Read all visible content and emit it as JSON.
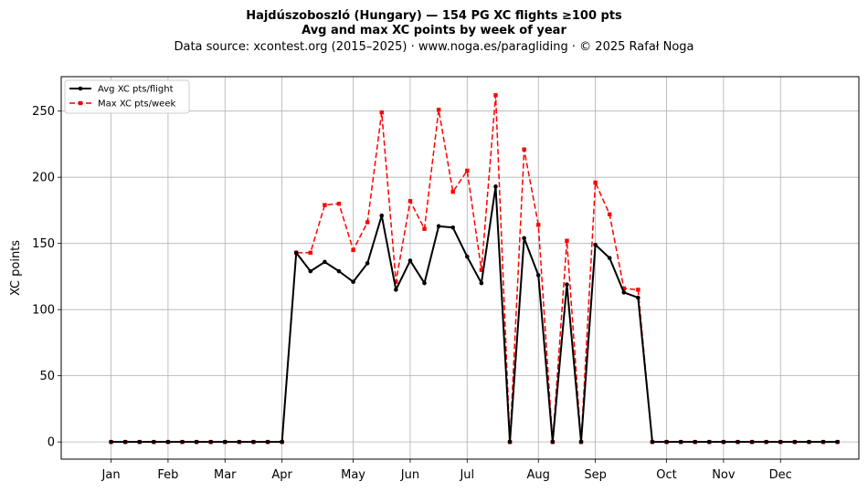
{
  "chart_data": {
    "type": "line",
    "title": "Hajdúszoboszló (Hungary)  —  154 PG XC flights ≥100 pts",
    "subtitle": "Avg and max XC points by week of year",
    "source_line": "Data source: xcontest.org (2015–2025)  ·  www.noga.es/paragliding  ·  © 2025 Rafał Noga",
    "xlabel": "",
    "ylabel": "XC points",
    "xlim": [
      -2.5,
      53.5
    ],
    "ylim": [
      -13,
      276
    ],
    "yticks": [
      0,
      50,
      100,
      150,
      200,
      250
    ],
    "month_ticks": [
      {
        "label": "Jan",
        "week": 1
      },
      {
        "label": "Feb",
        "week": 5
      },
      {
        "label": "Mar",
        "week": 9
      },
      {
        "label": "Apr",
        "week": 13
      },
      {
        "label": "May",
        "week": 18
      },
      {
        "label": "Jun",
        "week": 22
      },
      {
        "label": "Jul",
        "week": 26
      },
      {
        "label": "Aug",
        "week": 31
      },
      {
        "label": "Sep",
        "week": 35
      },
      {
        "label": "Oct",
        "week": 40
      },
      {
        "label": "Nov",
        "week": 44
      },
      {
        "label": "Dec",
        "week": 48
      }
    ],
    "grid": true,
    "legend_position": "top-left",
    "x": [
      1,
      2,
      3,
      4,
      5,
      6,
      7,
      8,
      9,
      10,
      11,
      12,
      13,
      14,
      15,
      16,
      17,
      18,
      19,
      20,
      21,
      22,
      23,
      24,
      25,
      26,
      27,
      28,
      29,
      30,
      31,
      32,
      33,
      34,
      35,
      36,
      37,
      38,
      39,
      40,
      41,
      42,
      43,
      44,
      45,
      46,
      47,
      48,
      49,
      50,
      51,
      52
    ],
    "series": [
      {
        "name": "Avg XC pts/flight",
        "color": "#000000",
        "style": "solid",
        "marker": "circle",
        "values": [
          0,
          0,
          0,
          0,
          0,
          0,
          0,
          0,
          0,
          0,
          0,
          0,
          0,
          143,
          129,
          136,
          129,
          121,
          135,
          171,
          115,
          137,
          120,
          163,
          162,
          140,
          120,
          193,
          0,
          154,
          126,
          0,
          119,
          0,
          149,
          139,
          113,
          109,
          0,
          0,
          0,
          0,
          0,
          0,
          0,
          0,
          0,
          0,
          0,
          0,
          0,
          0
        ]
      },
      {
        "name": "Max XC pts/week",
        "color": "#ff0000",
        "style": "dashed",
        "marker": "square",
        "values": [
          0,
          0,
          0,
          0,
          0,
          0,
          0,
          0,
          0,
          0,
          0,
          0,
          0,
          143,
          143,
          179,
          180,
          145,
          166,
          249,
          121,
          182,
          161,
          251,
          189,
          205,
          130,
          262,
          0,
          221,
          164,
          0,
          152,
          0,
          196,
          172,
          116,
          115,
          0,
          0,
          0,
          0,
          0,
          0,
          0,
          0,
          0,
          0,
          0,
          0,
          0,
          0
        ]
      }
    ]
  }
}
